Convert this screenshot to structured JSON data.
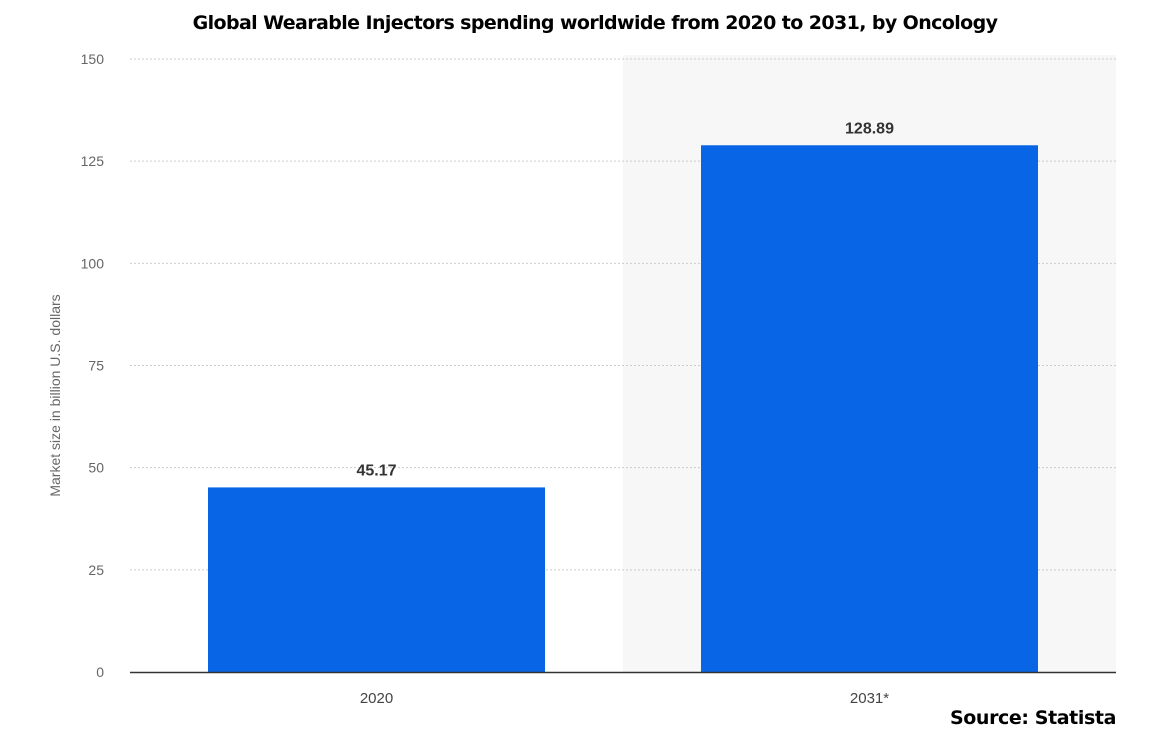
{
  "chart_data": {
    "type": "bar",
    "title": "Global Wearable Injectors spending worldwide from 2020 to 2031, by Oncology",
    "xlabel": "",
    "ylabel": "Market size in billion U.S. dollars",
    "categories": [
      "2020",
      "2031*"
    ],
    "values": [
      45.17,
      128.89
    ],
    "value_labels": [
      "45.17",
      "128.89"
    ],
    "ylim": [
      0,
      150
    ],
    "yticks": [
      0,
      25,
      50,
      75,
      100,
      125,
      150
    ],
    "grid": true,
    "highlighted_category": "2031*",
    "legend": "none"
  },
  "source": "Source: Statista",
  "colors": {
    "bar": "#0866e6",
    "grid": "#cccccc",
    "axis": "#333333",
    "forecast_shade": "#f7f7f7"
  }
}
